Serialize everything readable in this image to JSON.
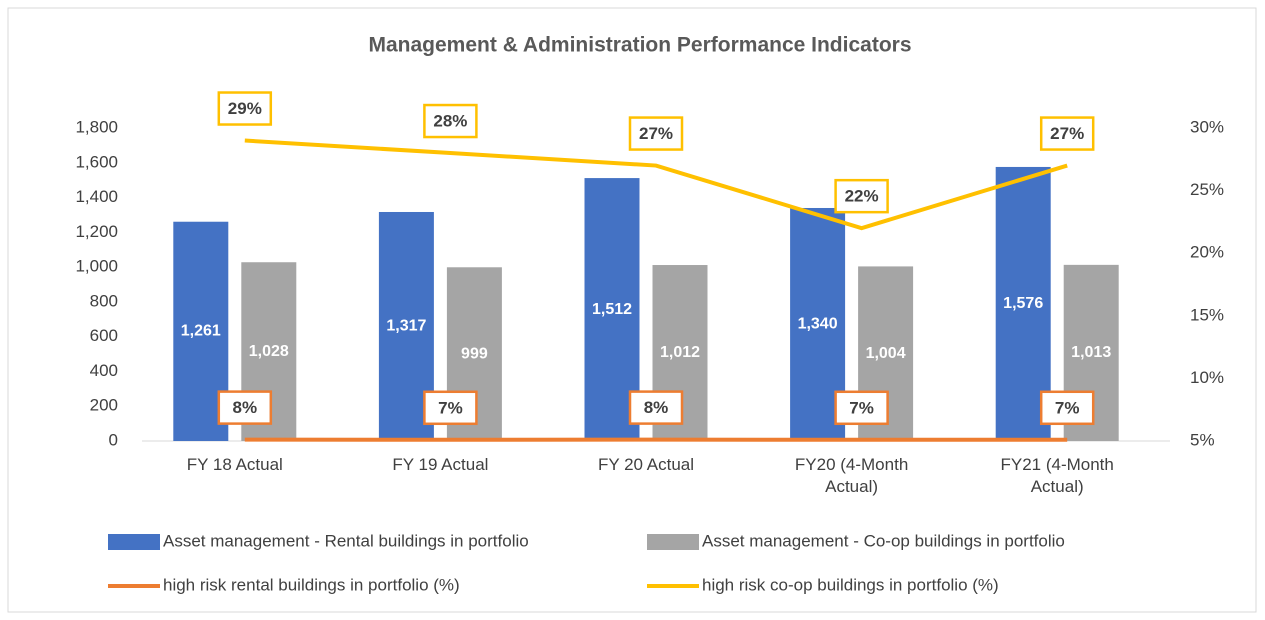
{
  "chart_data": {
    "type": "bar",
    "title": "Management & Administration Performance Indicators",
    "categories": [
      "FY 18 Actual",
      "FY 19 Actual",
      "FY 20 Actual",
      "FY20 (4-Month Actual)",
      "FY21 (4-Month Actual)"
    ],
    "series": [
      {
        "name": "Asset management - Rental buildings in portfolio",
        "type": "bar",
        "color": "#4472c4",
        "axis": "y",
        "values": [
          1261,
          1317,
          1512,
          1340,
          1576
        ],
        "value_labels": [
          "1,261",
          "1,317",
          "1,512",
          "1,340",
          "1,576"
        ]
      },
      {
        "name": "Asset management - Co-op buildings in portfolio",
        "type": "bar",
        "color": "#a5a5a5",
        "axis": "y",
        "values": [
          1028,
          999,
          1012,
          1004,
          1013
        ],
        "value_labels": [
          "1,028",
          "999",
          "1,012",
          "1,004",
          "1,013"
        ]
      },
      {
        "name": "high risk rental buildings in portfolio (%)",
        "type": "line",
        "color": "#ed7d31",
        "axis": "y",
        "values": [
          8,
          7,
          8,
          7,
          7
        ],
        "value_labels": [
          "8%",
          "7%",
          "8%",
          "7%",
          "7%"
        ]
      },
      {
        "name": "high risk co-op buildings in portfolio (%)",
        "type": "line",
        "color": "#ffc000",
        "axis": "y2",
        "values": [
          29,
          28,
          27,
          22,
          27
        ],
        "value_labels": [
          "29%",
          "28%",
          "27%",
          "22%",
          "27%"
        ]
      }
    ],
    "ylim": [
      0,
      1800
    ],
    "yticks": [
      0,
      200,
      400,
      600,
      800,
      {
        "value": 1000,
        "label": "1,000"
      },
      {
        "value": 1200,
        "label": "1,200"
      },
      {
        "value": 1400,
        "label": "1,400"
      },
      {
        "value": 1600,
        "label": "1,600"
      },
      {
        "value": 1800,
        "label": "1,800"
      }
    ],
    "y2lim": [
      5,
      30
    ],
    "y2ticks": [
      {
        "value": 5,
        "label": "5%"
      },
      {
        "value": 10,
        "label": "10%"
      },
      {
        "value": 15,
        "label": "15%"
      },
      {
        "value": 20,
        "label": "20%"
      },
      {
        "value": 25,
        "label": "25%"
      },
      {
        "value": 30,
        "label": "30%"
      }
    ],
    "grid": false,
    "legend": "bottom"
  }
}
